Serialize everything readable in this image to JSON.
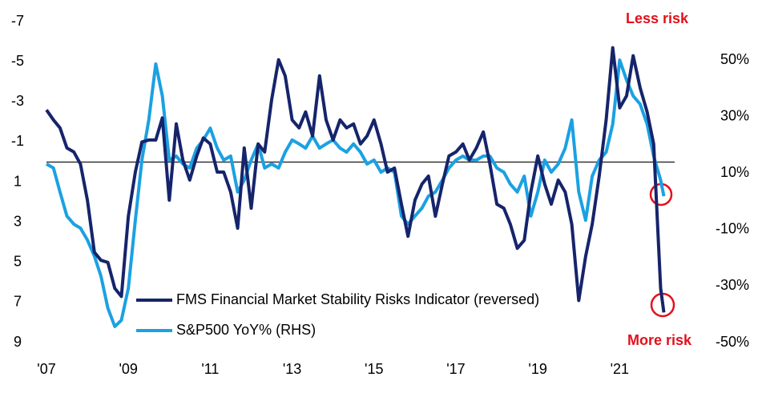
{
  "chart_data": {
    "type": "line",
    "x": [
      2007.0,
      2007.17,
      2007.33,
      2007.5,
      2007.67,
      2007.83,
      2008.0,
      2008.17,
      2008.33,
      2008.5,
      2008.67,
      2008.83,
      2009.0,
      2009.17,
      2009.33,
      2009.5,
      2009.67,
      2009.83,
      2010.0,
      2010.17,
      2010.33,
      2010.5,
      2010.67,
      2010.83,
      2011.0,
      2011.17,
      2011.33,
      2011.5,
      2011.67,
      2011.83,
      2012.0,
      2012.17,
      2012.33,
      2012.5,
      2012.67,
      2012.83,
      2013.0,
      2013.17,
      2013.33,
      2013.5,
      2013.67,
      2013.83,
      2014.0,
      2014.17,
      2014.33,
      2014.5,
      2014.67,
      2014.83,
      2015.0,
      2015.17,
      2015.33,
      2015.5,
      2015.67,
      2015.83,
      2016.0,
      2016.17,
      2016.33,
      2016.5,
      2016.67,
      2016.83,
      2017.0,
      2017.17,
      2017.33,
      2017.5,
      2017.67,
      2017.83,
      2018.0,
      2018.17,
      2018.33,
      2018.5,
      2018.67,
      2018.83,
      2019.0,
      2019.17,
      2019.33,
      2019.5,
      2019.67,
      2019.83,
      2020.0,
      2020.17,
      2020.33,
      2020.5,
      2020.67,
      2020.83,
      2021.0,
      2021.17,
      2021.33,
      2021.5,
      2021.67,
      2021.83,
      2022.0,
      2022.08
    ],
    "series": [
      {
        "name": "FMS Financial Market Stability Risks Indicator (reversed)",
        "color": "#16246b",
        "values": [
          -2.6,
          -2.1,
          -1.7,
          -0.7,
          -0.5,
          0.1,
          1.9,
          4.5,
          4.9,
          5.0,
          6.3,
          6.7,
          2.7,
          0.5,
          -1.0,
          -1.1,
          -1.1,
          -2.2,
          1.9,
          -1.9,
          -0.1,
          0.9,
          -0.3,
          -1.2,
          -0.9,
          0.5,
          0.5,
          1.5,
          3.3,
          -0.7,
          2.3,
          -0.9,
          -0.5,
          -3.1,
          -5.1,
          -4.3,
          -2.1,
          -1.7,
          -2.5,
          -1.3,
          -4.3,
          -2.1,
          -1.1,
          -2.1,
          -1.7,
          -1.9,
          -0.9,
          -1.3,
          -2.1,
          -0.9,
          0.5,
          0.3,
          2.1,
          3.7,
          1.9,
          1.1,
          0.7,
          2.7,
          1.1,
          -0.3,
          -0.5,
          -0.9,
          -0.1,
          -0.7,
          -1.5,
          0.1,
          2.1,
          2.3,
          3.1,
          4.3,
          3.9,
          1.5,
          -0.3,
          1.1,
          2.1,
          0.9,
          1.5,
          3.1,
          6.9,
          4.7,
          3.1,
          0.7,
          -2.1,
          -5.7,
          -2.7,
          -3.3,
          -5.3,
          -3.7,
          -2.5,
          -0.9,
          6.3,
          7.5
        ]
      },
      {
        "name": "S&P500 YoY% (RHS)",
        "color": "#1ba1e2",
        "axis": "y2",
        "values": [
          13.2,
          11.8,
          3.3,
          -5.2,
          -8.1,
          -9.5,
          -13.7,
          -19.4,
          -26.5,
          -37.8,
          -44.3,
          -42.1,
          -30.7,
          -6.7,
          14.6,
          28.8,
          48.6,
          37.3,
          14.6,
          16.0,
          13.2,
          11.8,
          18.8,
          21.7,
          25.9,
          18.8,
          14.6,
          16.0,
          3.3,
          7.5,
          14.6,
          20.3,
          11.8,
          13.2,
          11.8,
          17.4,
          21.7,
          20.3,
          18.8,
          23.1,
          18.8,
          20.3,
          21.7,
          18.8,
          17.4,
          20.3,
          17.4,
          13.2,
          14.6,
          10.3,
          11.8,
          10.3,
          -5.2,
          -8.1,
          -5.2,
          -2.4,
          1.8,
          3.3,
          7.5,
          11.8,
          14.6,
          16.0,
          14.6,
          14.6,
          16.0,
          16.0,
          11.8,
          10.3,
          6.1,
          3.3,
          8.9,
          -5.2,
          3.3,
          14.6,
          10.3,
          13.2,
          18.8,
          28.8,
          3.3,
          -6.7,
          8.9,
          14.6,
          17.4,
          27.3,
          50.0,
          42.9,
          37.3,
          34.4,
          27.3,
          16.0,
          7.5,
          1.8
        ]
      }
    ],
    "xlim": [
      2007,
      2022.5
    ],
    "xticks": [
      {
        "value": 2007,
        "label": "'07"
      },
      {
        "value": 2009,
        "label": "'09"
      },
      {
        "value": 2011,
        "label": "'11"
      },
      {
        "value": 2013,
        "label": "'13"
      },
      {
        "value": 2015,
        "label": "'15"
      },
      {
        "value": 2017,
        "label": "'17"
      },
      {
        "value": 2019,
        "label": "'19"
      },
      {
        "value": 2021,
        "label": "'21"
      }
    ],
    "ylim": [
      9,
      -7
    ],
    "yticks": [
      -7,
      -5,
      -3,
      -1,
      1,
      3,
      5,
      7,
      9
    ],
    "y2lim": [
      -50,
      63.6
    ],
    "y2ticks": [
      {
        "value": 50,
        "label": "50%"
      },
      {
        "value": 30,
        "label": "30%"
      },
      {
        "value": 10,
        "label": "10%"
      },
      {
        "value": -10,
        "label": "-10%"
      },
      {
        "value": -30,
        "label": "-30%"
      },
      {
        "value": -50,
        "label": "-50%"
      }
    ],
    "zero_line": true,
    "legend": "lower center",
    "annotations": [
      "Less risk",
      "More risk"
    ]
  }
}
